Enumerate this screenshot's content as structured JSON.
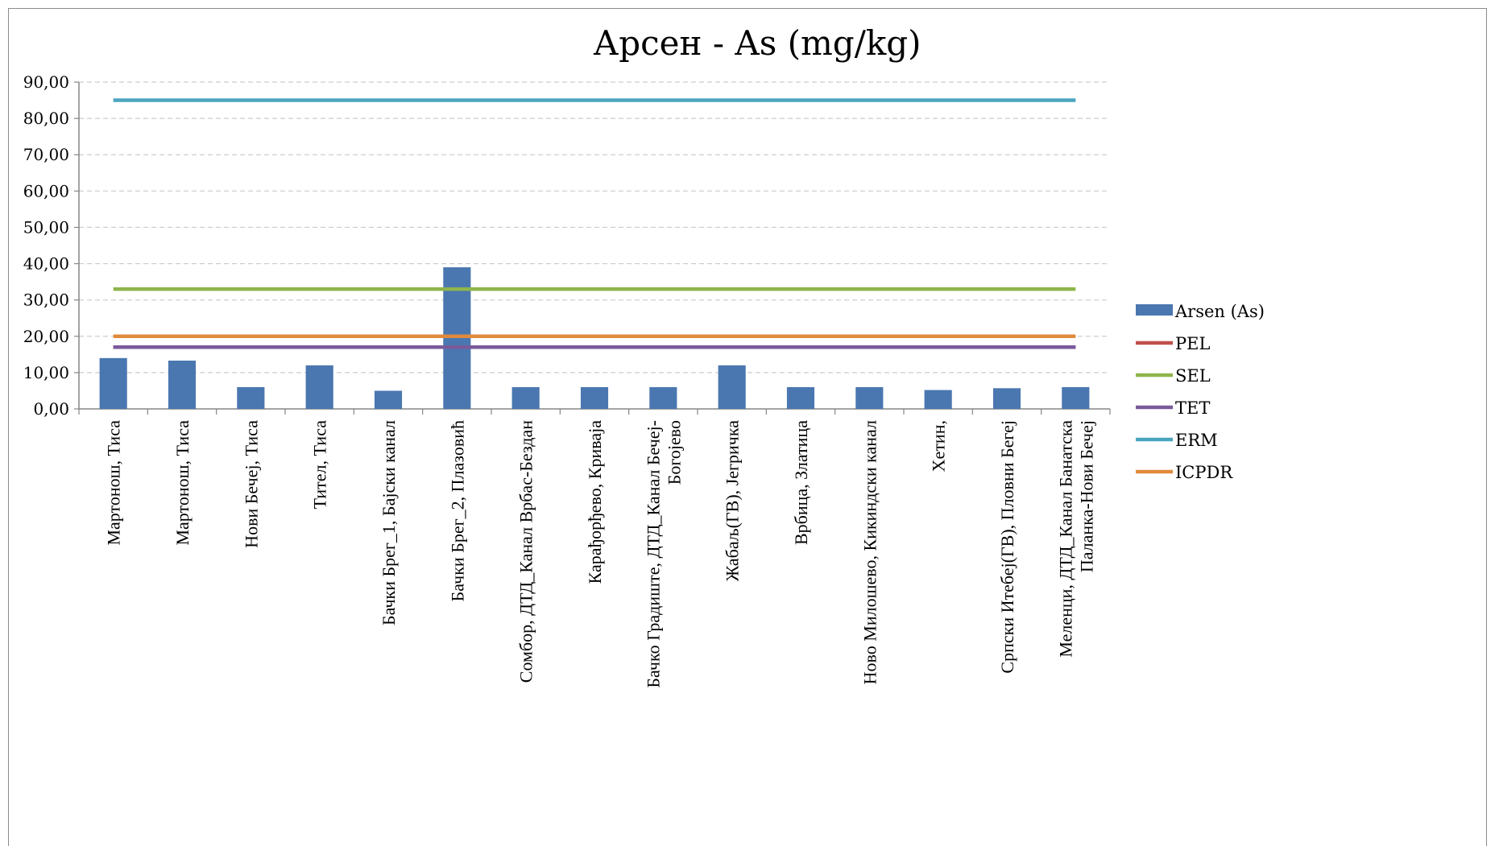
{
  "chart_data": {
    "type": "bar",
    "title": "Арсен - As (mg/kg)",
    "xlabel": "",
    "ylabel": "",
    "ylim": [
      0,
      90
    ],
    "yticks": [
      "0,00",
      "10,00",
      "20,00",
      "30,00",
      "40,00",
      "50,00",
      "60,00",
      "70,00",
      "80,00",
      "90,00"
    ],
    "grid": true,
    "legend_position": "right",
    "categories": [
      [
        "Мартонош, Тиса"
      ],
      [
        "Мартонош, Тиса"
      ],
      [
        "Нови Бечеј, Тиса"
      ],
      [
        "Тител, Тиса"
      ],
      [
        "Бачки Брег_1, Бајски канал"
      ],
      [
        "Бачки Брег_2, Плазовић"
      ],
      [
        "Сомбор, ДТД_Канал Врбас-Бездан"
      ],
      [
        "Карађорђево, Криваја"
      ],
      [
        "Бачко Градиште, ДТД_Канал Бечеј-",
        "Богојево"
      ],
      [
        "Жабаљ(ГВ), Јегричка"
      ],
      [
        "Врбица, Златица"
      ],
      [
        "Ново Милошево, Кикиндски канал"
      ],
      [
        "Хетин,"
      ],
      [
        "Српски Итебеј(ГВ), Пловни Бегеј"
      ],
      [
        "Меленци, ДТД_Канал Банатска",
        "Паланка-Нови Бечеј"
      ]
    ],
    "series": [
      {
        "name": "Arsen (As)",
        "kind": "bar",
        "color": "#4a77b0",
        "values": [
          14,
          13.3,
          6,
          12,
          5,
          39,
          6,
          6,
          6,
          12,
          6,
          6,
          5.2,
          5.7,
          6
        ]
      },
      {
        "name": "PEL",
        "kind": "line",
        "color": "#c0504d",
        "value": 17
      },
      {
        "name": "SEL",
        "kind": "line",
        "color": "#8eb54b",
        "value": 33
      },
      {
        "name": "TET",
        "kind": "line",
        "color": "#7a5a9a",
        "value": 17
      },
      {
        "name": "ERM",
        "kind": "line",
        "color": "#4aa5bf",
        "value": 85
      },
      {
        "name": "ICPDR",
        "kind": "line",
        "color": "#e08a3c",
        "value": 20
      }
    ],
    "line_draw_order": [
      "PEL",
      "TET",
      "SEL",
      "ICPDR",
      "ERM"
    ]
  }
}
